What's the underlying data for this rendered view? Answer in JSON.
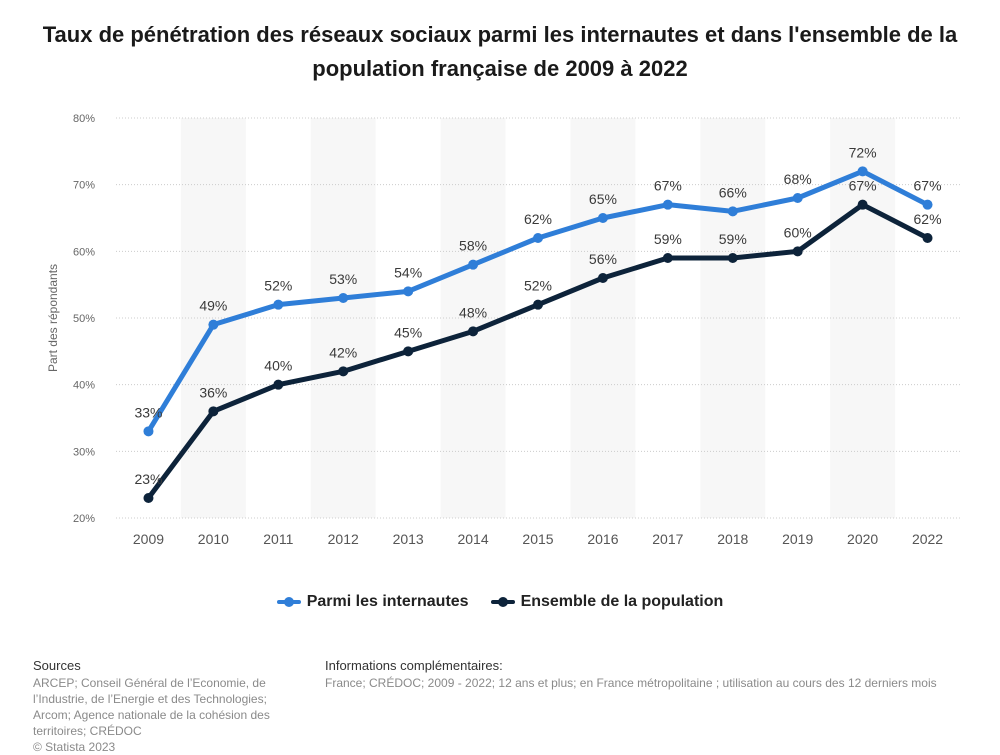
{
  "chart_data": {
    "type": "line",
    "title": "Taux de pénétration des réseaux sociaux parmi les internautes et dans l'ensemble de la population française de 2009 à 2022",
    "xlabel": "",
    "ylabel": "Part des répondants",
    "ylim": [
      20,
      80
    ],
    "yticks": [
      20,
      30,
      40,
      50,
      60,
      70,
      80
    ],
    "ytick_labels": [
      "20%",
      "30%",
      "40%",
      "50%",
      "60%",
      "70%",
      "80%"
    ],
    "categories": [
      "2009",
      "2010",
      "2011",
      "2012",
      "2013",
      "2014",
      "2015",
      "2016",
      "2017",
      "2018",
      "2019",
      "2020",
      "2022"
    ],
    "series": [
      {
        "name": "Parmi les internautes",
        "color": "#2f7ed8",
        "values": [
          33,
          49,
          52,
          53,
          54,
          58,
          62,
          65,
          67,
          66,
          68,
          72,
          67
        ],
        "labels": [
          "33%",
          "49%",
          "52%",
          "53%",
          "54%",
          "58%",
          "62%",
          "65%",
          "67%",
          "66%",
          "68%",
          "72%",
          "67%"
        ]
      },
      {
        "name": "Ensemble de la population",
        "color": "#0d233a",
        "values": [
          23,
          36,
          40,
          42,
          45,
          48,
          52,
          56,
          59,
          59,
          60,
          67,
          62
        ],
        "labels": [
          "23%",
          "36%",
          "40%",
          "42%",
          "45%",
          "48%",
          "52%",
          "56%",
          "59%",
          "59%",
          "60%",
          "67%",
          "62%"
        ]
      }
    ],
    "grid": true,
    "legend_position": "bottom-center"
  },
  "footer": {
    "sources_title": "Sources",
    "sources_text": "ARCEP; Conseil Général de l’Economie, de l’Industrie, de l’Energie et des Technologies; Arcom; Agence nationale de la cohésion des territoires; CRÉDOC",
    "copyright": "© Statista 2023",
    "info_title": "Informations complémentaires:",
    "info_text": "France; CRÉDOC; 2009 - 2022; 12 ans et plus; en France métropolitaine ; utilisation au cours des 12 derniers mois"
  }
}
